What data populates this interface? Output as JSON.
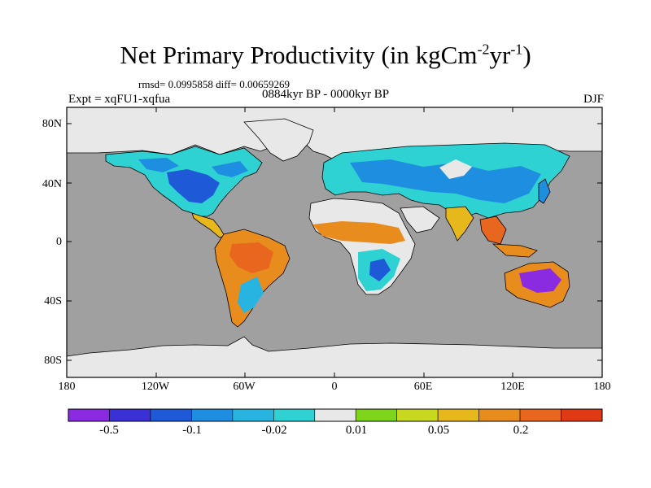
{
  "title": {
    "main": "Net Primary Productivity (in kgCm",
    "sup1": "-2",
    "mid": "yr",
    "sup2": "-1",
    "close": ")"
  },
  "stats": "rmsd= 0.0995858 diff= 0.00659269",
  "period": "0884kyr BP - 0000kyr BP",
  "experiment": "Expt = xqFU1-xqfua",
  "season": "DJF",
  "axes": {
    "lat_ticks": [
      "80N",
      "40N",
      "0",
      "40S",
      "80S"
    ],
    "lon_ticks": [
      "180",
      "120W",
      "60W",
      "0",
      "60E",
      "120E",
      "180"
    ]
  },
  "colorbar": {
    "colors": [
      "#8a2be2",
      "#3b2fd6",
      "#1e5ad8",
      "#1e8fe0",
      "#28b4e0",
      "#2fd2d2",
      "#e8e8e8",
      "#7fd41c",
      "#c8d81e",
      "#e6b81c",
      "#e88c1e",
      "#e8661e",
      "#e03a14"
    ],
    "labels": [
      "-0.5",
      "-0.1",
      "-0.02",
      "0.01",
      "0.05",
      "0.2"
    ]
  },
  "map_colors": {
    "ocean": "#a0a0a0",
    "ice": "#e8e8e8",
    "coast": "#000000"
  }
}
